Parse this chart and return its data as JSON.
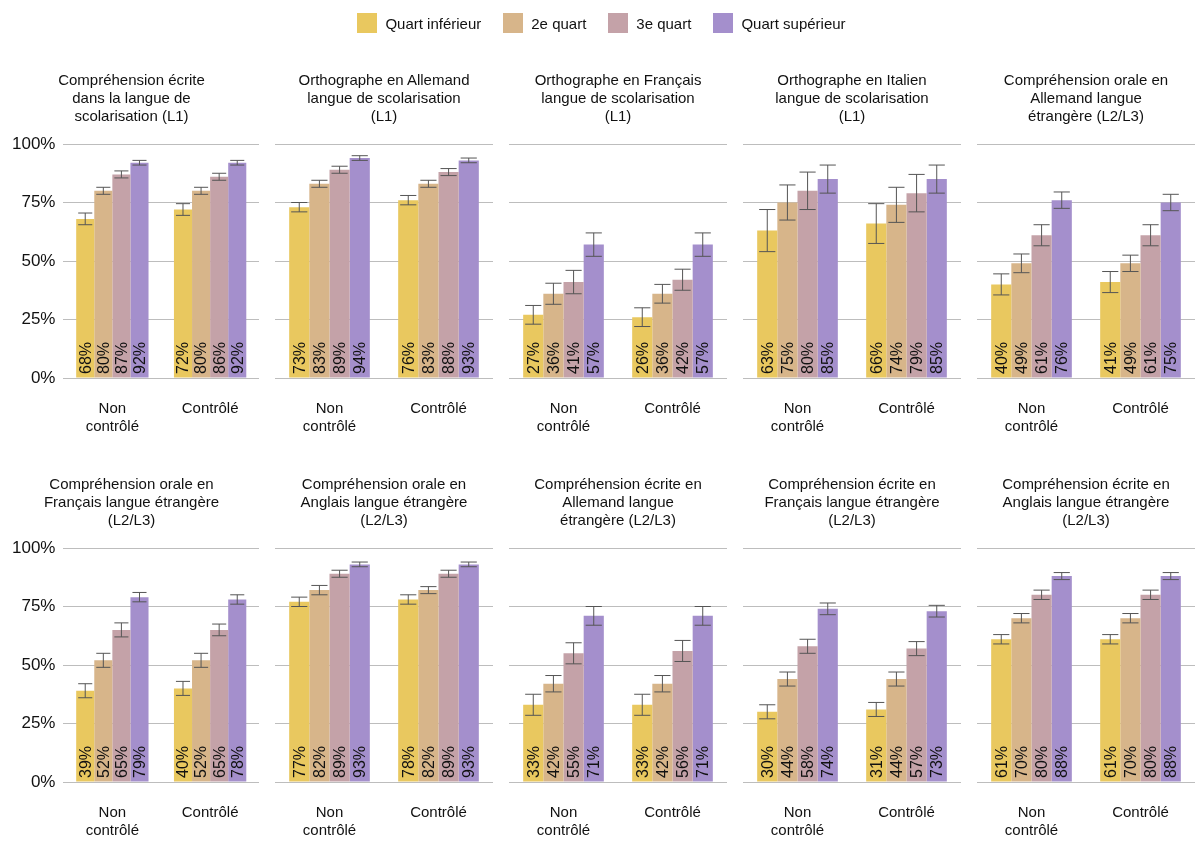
{
  "chart_data": [
    {
      "type": "bar",
      "title": "Compréhension écrite dans la langue de scolarisation (L1)",
      "categories": [
        "Non contrôlé",
        "Contrôlé"
      ],
      "ylim": [
        0,
        100
      ],
      "yticks": [
        {
          "value": 0,
          "label": "0%"
        },
        {
          "value": 25,
          "label": "25%"
        },
        {
          "value": 50,
          "label": "50%"
        },
        {
          "value": 75,
          "label": "75%"
        },
        {
          "value": 100,
          "label": "100%"
        }
      ],
      "grid": "y",
      "legend": "top",
      "series": [
        {
          "name": "Quart inférieur",
          "color": "#e9c85f",
          "values": [
            68,
            72
          ],
          "errors": [
            2.5,
            2.5
          ],
          "value_labels": [
            "68%",
            "72%"
          ]
        },
        {
          "name": "2e quart",
          "color": "#d7b58a",
          "values": [
            80,
            80
          ],
          "errors": [
            1.5,
            1.5
          ],
          "value_labels": [
            "80%",
            "80%"
          ]
        },
        {
          "name": "3e quart",
          "color": "#c4a2a8",
          "values": [
            87,
            86
          ],
          "errors": [
            1.5,
            1.5
          ],
          "value_labels": [
            "87%",
            "86%"
          ]
        },
        {
          "name": "Quart supérieur",
          "color": "#a48fcc",
          "values": [
            92,
            92
          ],
          "errors": [
            1,
            1
          ],
          "value_labels": [
            "92%",
            "92%"
          ]
        }
      ]
    },
    {
      "type": "bar",
      "title": "Orthographe en Allemand langue de scolarisation (L1)",
      "categories": [
        "Non contrôlé",
        "Contrôlé"
      ],
      "ylim": [
        0,
        100
      ],
      "yticks": [
        0,
        25,
        50,
        75,
        100
      ],
      "grid": "y",
      "tick_labels": "x",
      "series": [
        {
          "color": "#e9c85f",
          "values": [
            73,
            76
          ],
          "errors": [
            2,
            2
          ],
          "value_labels": [
            "73%",
            "76%"
          ]
        },
        {
          "color": "#d7b58a",
          "values": [
            83,
            83
          ],
          "errors": [
            1.5,
            1.5
          ],
          "value_labels": [
            "83%",
            "83%"
          ]
        },
        {
          "color": "#c4a2a8",
          "values": [
            89,
            88
          ],
          "errors": [
            1.5,
            1.5
          ],
          "value_labels": [
            "89%",
            "88%"
          ]
        },
        {
          "color": "#a48fcc",
          "values": [
            94,
            93
          ],
          "errors": [
            1,
            1
          ],
          "value_labels": [
            "94%",
            "93%"
          ]
        }
      ]
    },
    {
      "type": "bar",
      "title": "Orthographe en Français langue de scolarisation (L1)",
      "categories": [
        "Non contrôlé",
        "Contrôlé"
      ],
      "ylim": [
        0,
        100
      ],
      "yticks": [
        0,
        25,
        50,
        75,
        100
      ],
      "grid": "y",
      "tick_labels": "x",
      "series": [
        {
          "color": "#e9c85f",
          "values": [
            27,
            26
          ],
          "errors": [
            4,
            4
          ],
          "value_labels": [
            "27%",
            "26%"
          ]
        },
        {
          "color": "#d7b58a",
          "values": [
            36,
            36
          ],
          "errors": [
            4.5,
            4
          ],
          "value_labels": [
            "36%",
            "36%"
          ]
        },
        {
          "color": "#c4a2a8",
          "values": [
            41,
            42
          ],
          "errors": [
            5,
            4.5
          ],
          "value_labels": [
            "41%",
            "42%"
          ]
        },
        {
          "color": "#a48fcc",
          "values": [
            57,
            57
          ],
          "errors": [
            5,
            5
          ],
          "value_labels": [
            "57%",
            "57%"
          ]
        }
      ]
    },
    {
      "type": "bar",
      "title": "Orthographe en Italien langue de scolarisation (L1)",
      "categories": [
        "Non contrôlé",
        "Contrôlé"
      ],
      "ylim": [
        0,
        100
      ],
      "yticks": [
        0,
        25,
        50,
        75,
        100
      ],
      "grid": "y",
      "tick_labels": "x",
      "series": [
        {
          "color": "#e9c85f",
          "values": [
            63,
            66
          ],
          "errors": [
            9,
            8.5
          ],
          "value_labels": [
            "63%",
            "66%"
          ]
        },
        {
          "color": "#d7b58a",
          "values": [
            75,
            74
          ],
          "errors": [
            7.5,
            7.5
          ],
          "value_labels": [
            "75%",
            "74%"
          ]
        },
        {
          "color": "#c4a2a8",
          "values": [
            80,
            79
          ],
          "errors": [
            8,
            8
          ],
          "value_labels": [
            "80%",
            "79%"
          ]
        },
        {
          "color": "#a48fcc",
          "values": [
            85,
            85
          ],
          "errors": [
            6,
            6
          ],
          "value_labels": [
            "85%",
            "85%"
          ]
        }
      ]
    },
    {
      "type": "bar",
      "title": "Compréhension orale en Allemand langue étrangère (L2/L3)",
      "categories": [
        "Non contrôlé",
        "Contrôlé"
      ],
      "ylim": [
        0,
        100
      ],
      "yticks": [
        0,
        25,
        50,
        75,
        100
      ],
      "grid": "y",
      "tick_labels": "x",
      "series": [
        {
          "color": "#e9c85f",
          "values": [
            40,
            41
          ],
          "errors": [
            4.5,
            4.5
          ],
          "value_labels": [
            "40%",
            "41%"
          ]
        },
        {
          "color": "#d7b58a",
          "values": [
            49,
            49
          ],
          "errors": [
            4,
            3.5
          ],
          "value_labels": [
            "49%",
            "49%"
          ]
        },
        {
          "color": "#c4a2a8",
          "values": [
            61,
            61
          ],
          "errors": [
            4.5,
            4.5
          ],
          "value_labels": [
            "61%",
            "61%"
          ]
        },
        {
          "color": "#a48fcc",
          "values": [
            76,
            75
          ],
          "errors": [
            3.5,
            3.5
          ],
          "value_labels": [
            "76%",
            "75%"
          ]
        }
      ]
    },
    {
      "type": "bar",
      "title": "Compréhension orale en Français langue étrangère (L2/L3)",
      "categories": [
        "Non contrôlé",
        "Contrôlé"
      ],
      "ylim": [
        0,
        100
      ],
      "yticks": [
        {
          "value": 0,
          "label": "0%"
        },
        {
          "value": 25,
          "label": "25%"
        },
        {
          "value": 50,
          "label": "50%"
        },
        {
          "value": 75,
          "label": "75%"
        },
        {
          "value": 100,
          "label": "100%"
        }
      ],
      "grid": "y",
      "series": [
        {
          "color": "#e9c85f",
          "values": [
            39,
            40
          ],
          "errors": [
            3,
            3
          ],
          "value_labels": [
            "39%",
            "40%"
          ]
        },
        {
          "color": "#d7b58a",
          "values": [
            52,
            52
          ],
          "errors": [
            3,
            3
          ],
          "value_labels": [
            "52%",
            "52%"
          ]
        },
        {
          "color": "#c4a2a8",
          "values": [
            65,
            65
          ],
          "errors": [
            3,
            2.5
          ],
          "value_labels": [
            "65%",
            "65%"
          ]
        },
        {
          "color": "#a48fcc",
          "values": [
            79,
            78
          ],
          "errors": [
            2,
            2
          ],
          "value_labels": [
            "79%",
            "78%"
          ]
        }
      ]
    },
    {
      "type": "bar",
      "title": "Compréhension orale en Anglais langue étrangère (L2/L3)",
      "categories": [
        "Non contrôlé",
        "Contrôlé"
      ],
      "ylim": [
        0,
        100
      ],
      "yticks": [
        0,
        25,
        50,
        75,
        100
      ],
      "grid": "y",
      "tick_labels": "x",
      "series": [
        {
          "color": "#e9c85f",
          "values": [
            77,
            78
          ],
          "errors": [
            2,
            2
          ],
          "value_labels": [
            "77%",
            "78%"
          ]
        },
        {
          "color": "#d7b58a",
          "values": [
            82,
            82
          ],
          "errors": [
            2,
            1.5
          ],
          "value_labels": [
            "82%",
            "82%"
          ]
        },
        {
          "color": "#c4a2a8",
          "values": [
            89,
            89
          ],
          "errors": [
            1.5,
            1.5
          ],
          "value_labels": [
            "89%",
            "89%"
          ]
        },
        {
          "color": "#a48fcc",
          "values": [
            93,
            93
          ],
          "errors": [
            1,
            1
          ],
          "value_labels": [
            "93%",
            "93%"
          ]
        }
      ]
    },
    {
      "type": "bar",
      "title": "Compréhension écrite en Allemand langue étrangère (L2/L3)",
      "categories": [
        "Non contrôlé",
        "Contrôlé"
      ],
      "ylim": [
        0,
        100
      ],
      "yticks": [
        0,
        25,
        50,
        75,
        100
      ],
      "grid": "y",
      "tick_labels": "x",
      "series": [
        {
          "color": "#e9c85f",
          "values": [
            33,
            33
          ],
          "errors": [
            4.5,
            4.5
          ],
          "value_labels": [
            "33%",
            "33%"
          ]
        },
        {
          "color": "#d7b58a",
          "values": [
            42,
            42
          ],
          "errors": [
            3.5,
            3.5
          ],
          "value_labels": [
            "42%",
            "42%"
          ]
        },
        {
          "color": "#c4a2a8",
          "values": [
            55,
            56
          ],
          "errors": [
            4.5,
            4.5
          ],
          "value_labels": [
            "55%",
            "56%"
          ]
        },
        {
          "color": "#a48fcc",
          "values": [
            71,
            71
          ],
          "errors": [
            4,
            4
          ],
          "value_labels": [
            "71%",
            "71%"
          ]
        }
      ]
    },
    {
      "type": "bar",
      "title": "Compréhension écrite en Français langue étrangère (L2/L3)",
      "categories": [
        "Non contrôlé",
        "Contrôlé"
      ],
      "ylim": [
        0,
        100
      ],
      "yticks": [
        0,
        25,
        50,
        75,
        100
      ],
      "grid": "y",
      "tick_labels": "x",
      "series": [
        {
          "color": "#e9c85f",
          "values": [
            30,
            31
          ],
          "errors": [
            3,
            3
          ],
          "value_labels": [
            "30%",
            "31%"
          ]
        },
        {
          "color": "#d7b58a",
          "values": [
            44,
            44
          ],
          "errors": [
            3,
            3
          ],
          "value_labels": [
            "44%",
            "44%"
          ]
        },
        {
          "color": "#c4a2a8",
          "values": [
            58,
            57
          ],
          "errors": [
            3,
            3
          ],
          "value_labels": [
            "58%",
            "57%"
          ]
        },
        {
          "color": "#a48fcc",
          "values": [
            74,
            73
          ],
          "errors": [
            2.5,
            2.5
          ],
          "value_labels": [
            "74%",
            "73%"
          ]
        }
      ]
    },
    {
      "type": "bar",
      "title": "Compréhension écrite en Anglais langue étrangère (L2/L3)",
      "categories": [
        "Non contrôlé",
        "Contrôlé"
      ],
      "ylim": [
        0,
        100
      ],
      "yticks": [
        0,
        25,
        50,
        75,
        100
      ],
      "grid": "y",
      "tick_labels": "x",
      "series": [
        {
          "color": "#e9c85f",
          "values": [
            61,
            61
          ],
          "errors": [
            2,
            2
          ],
          "value_labels": [
            "61%",
            "61%"
          ]
        },
        {
          "color": "#d7b58a",
          "values": [
            70,
            70
          ],
          "errors": [
            2,
            2
          ],
          "value_labels": [
            "70%",
            "70%"
          ]
        },
        {
          "color": "#c4a2a8",
          "values": [
            80,
            80
          ],
          "errors": [
            2,
            2
          ],
          "value_labels": [
            "80%",
            "80%"
          ]
        },
        {
          "color": "#a48fcc",
          "values": [
            88,
            88
          ],
          "errors": [
            1.5,
            1.5
          ],
          "value_labels": [
            "88%",
            "88%"
          ]
        }
      ]
    }
  ]
}
